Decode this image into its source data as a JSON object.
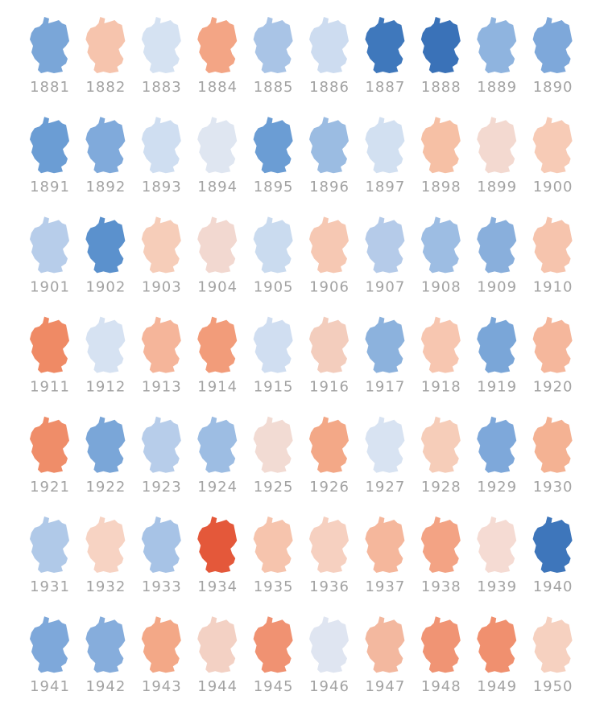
{
  "maps": [
    {
      "year": "1881",
      "color": "#7aa6d8"
    },
    {
      "year": "1882",
      "color": "#f6c4ad"
    },
    {
      "year": "1883",
      "color": "#d5e2f2"
    },
    {
      "year": "1884",
      "color": "#f3a585"
    },
    {
      "year": "1885",
      "color": "#a9c4e6"
    },
    {
      "year": "1886",
      "color": "#cddcf0"
    },
    {
      "year": "1887",
      "color": "#3f78bc"
    },
    {
      "year": "1888",
      "color": "#3a72b8"
    },
    {
      "year": "1889",
      "color": "#8fb4df"
    },
    {
      "year": "1890",
      "color": "#7ea8da"
    },
    {
      "year": "1891",
      "color": "#6b9dd4"
    },
    {
      "year": "1892",
      "color": "#80aadb"
    },
    {
      "year": "1893",
      "color": "#cfdef1"
    },
    {
      "year": "1894",
      "color": "#dfe6f1"
    },
    {
      "year": "1895",
      "color": "#6b9dd4"
    },
    {
      "year": "1896",
      "color": "#9bbce2"
    },
    {
      "year": "1897",
      "color": "#d2e0f1"
    },
    {
      "year": "1898",
      "color": "#f6c0a5"
    },
    {
      "year": "1899",
      "color": "#f3d9d0"
    },
    {
      "year": "1900",
      "color": "#f7cbb6"
    },
    {
      "year": "1901",
      "color": "#b7cdea"
    },
    {
      "year": "1902",
      "color": "#5b91cd"
    },
    {
      "year": "1903",
      "color": "#f6cdb9"
    },
    {
      "year": "1904",
      "color": "#f2d8d0"
    },
    {
      "year": "1905",
      "color": "#cadbef"
    },
    {
      "year": "1906",
      "color": "#f6c8b3"
    },
    {
      "year": "1907",
      "color": "#b5cbe9"
    },
    {
      "year": "1908",
      "color": "#9dbde3"
    },
    {
      "year": "1909",
      "color": "#89afdc"
    },
    {
      "year": "1910",
      "color": "#f6c4ad"
    },
    {
      "year": "1911",
      "color": "#ef8a65"
    },
    {
      "year": "1912",
      "color": "#d6e2f2"
    },
    {
      "year": "1913",
      "color": "#f5b59a"
    },
    {
      "year": "1914",
      "color": "#f29c7a"
    },
    {
      "year": "1915",
      "color": "#d0def1"
    },
    {
      "year": "1916",
      "color": "#f3cdbd"
    },
    {
      "year": "1917",
      "color": "#8cb2dd"
    },
    {
      "year": "1918",
      "color": "#f7c6b0"
    },
    {
      "year": "1919",
      "color": "#7aa6d8"
    },
    {
      "year": "1920",
      "color": "#f5b79c"
    },
    {
      "year": "1921",
      "color": "#ef8d69"
    },
    {
      "year": "1922",
      "color": "#7aa6d8"
    },
    {
      "year": "1923",
      "color": "#b7cdea"
    },
    {
      "year": "1924",
      "color": "#9dbde3"
    },
    {
      "year": "1925",
      "color": "#f2dbd3"
    },
    {
      "year": "1926",
      "color": "#f3a887"
    },
    {
      "year": "1927",
      "color": "#d8e3f2"
    },
    {
      "year": "1928",
      "color": "#f6cdb9"
    },
    {
      "year": "1929",
      "color": "#7ea8da"
    },
    {
      "year": "1930",
      "color": "#f4b293"
    },
    {
      "year": "1931",
      "color": "#b0c9e8"
    },
    {
      "year": "1932",
      "color": "#f7d3c3"
    },
    {
      "year": "1933",
      "color": "#a7c3e6"
    },
    {
      "year": "1934",
      "color": "#e4583a"
    },
    {
      "year": "1935",
      "color": "#f6c4ad"
    },
    {
      "year": "1936",
      "color": "#f6d0c0"
    },
    {
      "year": "1937",
      "color": "#f5b79c"
    },
    {
      "year": "1938",
      "color": "#f3a384"
    },
    {
      "year": "1939",
      "color": "#f5dbd3"
    },
    {
      "year": "1940",
      "color": "#3e76bb"
    },
    {
      "year": "1941",
      "color": "#7ea8da"
    },
    {
      "year": "1942",
      "color": "#86addc"
    },
    {
      "year": "1943",
      "color": "#f3a887"
    },
    {
      "year": "1944",
      "color": "#f3d1c4"
    },
    {
      "year": "1945",
      "color": "#f09272"
    },
    {
      "year": "1946",
      "color": "#dfe5f1"
    },
    {
      "year": "1947",
      "color": "#f3b89f"
    },
    {
      "year": "1948",
      "color": "#f09474"
    },
    {
      "year": "1949",
      "color": "#f0906f"
    },
    {
      "year": "1950",
      "color": "#f6d1c0"
    }
  ]
}
